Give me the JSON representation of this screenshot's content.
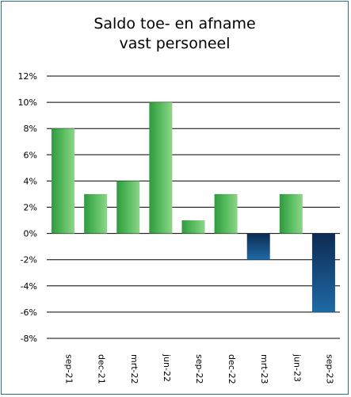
{
  "chart_data": {
    "type": "bar",
    "title_lines": [
      "Saldo toe- en afname",
      "vast personeel"
    ],
    "xlabel": "",
    "ylabel": "",
    "categories": [
      "sep-21",
      "dec-21",
      "mrt-22",
      "jun-22",
      "sep-22",
      "dec-22",
      "mrt-23",
      "jun-23",
      "sep-23"
    ],
    "values": [
      8,
      3,
      4,
      10,
      1,
      3,
      -2,
      3,
      -6
    ],
    "ylim": [
      -8,
      12
    ],
    "yticks": [
      12,
      10,
      8,
      6,
      4,
      2,
      0,
      -2,
      -4,
      -6,
      -8
    ],
    "tick_suffix": "%",
    "grid": true,
    "legend": "none",
    "colors": {
      "positive": "#3fa84a",
      "negative": "#143a6b",
      "frame": "#2c6e8f"
    }
  }
}
